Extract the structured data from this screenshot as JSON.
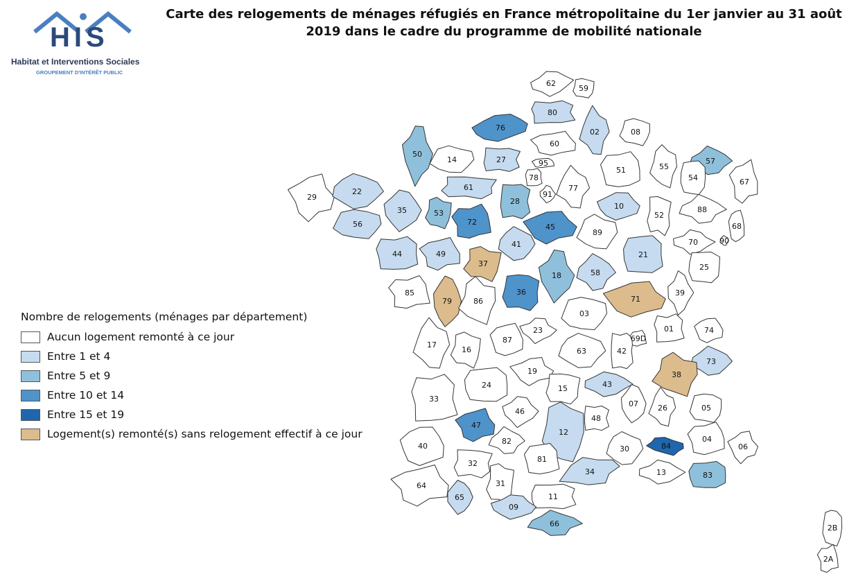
{
  "logo": {
    "letters": "HIS",
    "name": "Habitat et Interventions Sociales",
    "subtitle": "GROUPEMENT D'INTÉRÊT PUBLIC"
  },
  "title": {
    "line1": "Carte des relogements de ménages réfugiés en France métropolitaine du 1er janvier au 31 août",
    "line2": "2019 dans le cadre du programme de mobilité nationale"
  },
  "legend": {
    "title": "Nombre de relogements (ménages par département)",
    "items": [
      {
        "label": "Aucun logement remonté à ce jour",
        "color": "#ffffff"
      },
      {
        "label": "Entre 1 et 4",
        "color": "#c6dbef"
      },
      {
        "label": "Entre 5 et 9",
        "color": "#8fc0db"
      },
      {
        "label": "Entre 10 et 14",
        "color": "#4f93cb"
      },
      {
        "label": "Entre 15 et 19",
        "color": "#1f66ae"
      },
      {
        "label": "Logement(s) remonté(s) sans relogement effectif à ce jour",
        "color": "#dcbc8c"
      }
    ]
  },
  "departments": [
    {
      "code": "62",
      "cls": 0
    },
    {
      "code": "59",
      "cls": 0
    },
    {
      "code": "80",
      "cls": 1
    },
    {
      "code": "76",
      "cls": 3
    },
    {
      "code": "02",
      "cls": 1
    },
    {
      "code": "08",
      "cls": 0
    },
    {
      "code": "60",
      "cls": 0
    },
    {
      "code": "50",
      "cls": 2
    },
    {
      "code": "14",
      "cls": 0
    },
    {
      "code": "27",
      "cls": 1
    },
    {
      "code": "95",
      "cls": 0
    },
    {
      "code": "57",
      "cls": 2
    },
    {
      "code": "55",
      "cls": 0
    },
    {
      "code": "51",
      "cls": 0
    },
    {
      "code": "29",
      "cls": 0
    },
    {
      "code": "22",
      "cls": 1
    },
    {
      "code": "61",
      "cls": 1
    },
    {
      "code": "78",
      "cls": 0
    },
    {
      "code": "91",
      "cls": 0
    },
    {
      "code": "77",
      "cls": 0
    },
    {
      "code": "54",
      "cls": 0
    },
    {
      "code": "67",
      "cls": 0
    },
    {
      "code": "35",
      "cls": 1
    },
    {
      "code": "53",
      "cls": 2
    },
    {
      "code": "28",
      "cls": 2
    },
    {
      "code": "10",
      "cls": 1
    },
    {
      "code": "88",
      "cls": 0
    },
    {
      "code": "56",
      "cls": 1
    },
    {
      "code": "72",
      "cls": 3
    },
    {
      "code": "45",
      "cls": 3
    },
    {
      "code": "89",
      "cls": 0
    },
    {
      "code": "52",
      "cls": 0
    },
    {
      "code": "68",
      "cls": 0
    },
    {
      "code": "70",
      "cls": 0
    },
    {
      "code": "90",
      "cls": 0
    },
    {
      "code": "44",
      "cls": 1
    },
    {
      "code": "49",
      "cls": 1
    },
    {
      "code": "41",
      "cls": 1
    },
    {
      "code": "37",
      "cls": 5
    },
    {
      "code": "21",
      "cls": 1
    },
    {
      "code": "18",
      "cls": 2
    },
    {
      "code": "58",
      "cls": 1
    },
    {
      "code": "25",
      "cls": 0
    },
    {
      "code": "85",
      "cls": 0
    },
    {
      "code": "79",
      "cls": 5
    },
    {
      "code": "86",
      "cls": 0
    },
    {
      "code": "36",
      "cls": 3
    },
    {
      "code": "71",
      "cls": 5
    },
    {
      "code": "39",
      "cls": 0
    },
    {
      "code": "03",
      "cls": 0
    },
    {
      "code": "01",
      "cls": 0
    },
    {
      "code": "74",
      "cls": 0
    },
    {
      "code": "17",
      "cls": 0
    },
    {
      "code": "16",
      "cls": 0
    },
    {
      "code": "87",
      "cls": 0
    },
    {
      "code": "23",
      "cls": 0
    },
    {
      "code": "63",
      "cls": 0
    },
    {
      "code": "42",
      "cls": 0
    },
    {
      "code": "69D",
      "cls": 0
    },
    {
      "code": "73",
      "cls": 1
    },
    {
      "code": "38",
      "cls": 5
    },
    {
      "code": "24",
      "cls": 0
    },
    {
      "code": "19",
      "cls": 0
    },
    {
      "code": "43",
      "cls": 1
    },
    {
      "code": "15",
      "cls": 0
    },
    {
      "code": "33",
      "cls": 0
    },
    {
      "code": "07",
      "cls": 0
    },
    {
      "code": "26",
      "cls": 0
    },
    {
      "code": "05",
      "cls": 0
    },
    {
      "code": "47",
      "cls": 3
    },
    {
      "code": "46",
      "cls": 0
    },
    {
      "code": "12",
      "cls": 1
    },
    {
      "code": "48",
      "cls": 0
    },
    {
      "code": "40",
      "cls": 0
    },
    {
      "code": "82",
      "cls": 0
    },
    {
      "code": "84",
      "cls": 4
    },
    {
      "code": "04",
      "cls": 0
    },
    {
      "code": "06",
      "cls": 0
    },
    {
      "code": "30",
      "cls": 0
    },
    {
      "code": "32",
      "cls": 0
    },
    {
      "code": "81",
      "cls": 0
    },
    {
      "code": "13",
      "cls": 0
    },
    {
      "code": "34",
      "cls": 1
    },
    {
      "code": "83",
      "cls": 2
    },
    {
      "code": "64",
      "cls": 0
    },
    {
      "code": "65",
      "cls": 1
    },
    {
      "code": "31",
      "cls": 0
    },
    {
      "code": "11",
      "cls": 0
    },
    {
      "code": "09",
      "cls": 1
    },
    {
      "code": "66",
      "cls": 2
    },
    {
      "code": "2B",
      "cls": 0
    },
    {
      "code": "2A",
      "cls": 0
    }
  ]
}
